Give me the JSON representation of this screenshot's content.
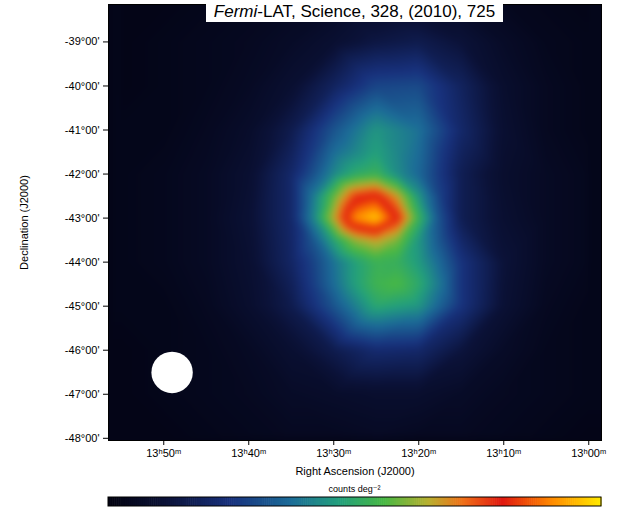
{
  "chart_data": {
    "type": "heatmap",
    "title": "Fermi-LAT, Science, 328, (2010), 725",
    "x_label": "Right Ascension (J2000)",
    "y_label": "Declination (J2000)",
    "xlim": [
      836.5,
      778.5
    ],
    "ylim": [
      -48.05,
      -38.15
    ],
    "xticks": [
      {
        "value": 830,
        "label": "13ʰ50ᵐ"
      },
      {
        "value": 820,
        "label": "13ʰ40ᵐ"
      },
      {
        "value": 810,
        "label": "13ʰ30ᵐ"
      },
      {
        "value": 800,
        "label": "13ʰ20ᵐ"
      },
      {
        "value": 790,
        "label": "13ʰ10ᵐ"
      },
      {
        "value": 780,
        "label": "13ʰ00ᵐ"
      }
    ],
    "yticks": [
      {
        "value": -39,
        "label": "-39°00'"
      },
      {
        "value": -40,
        "label": "-40°00'"
      },
      {
        "value": -41,
        "label": "-41°00'"
      },
      {
        "value": -42,
        "label": "-42°00'"
      },
      {
        "value": -43,
        "label": "-43°00'"
      },
      {
        "value": -44,
        "label": "-44°00'"
      },
      {
        "value": -45,
        "label": "-45°00'"
      },
      {
        "value": -46,
        "label": "-46°00'"
      },
      {
        "value": -47,
        "label": "-47°00'"
      },
      {
        "value": -48,
        "label": "-48°00'"
      }
    ],
    "cells": [
      {
        "x": [
          835,
          830,
          825,
          820,
          815,
          810,
          805,
          800,
          795,
          790,
          785,
          780
        ],
        "y": [
          -38,
          -39,
          -40,
          -41,
          -42,
          -43,
          -44,
          -45,
          -46,
          -47,
          -48
        ],
        "values": [
          [
            2,
            2,
            3,
            4,
            5,
            6,
            7,
            7,
            6,
            4,
            3,
            2
          ],
          [
            2,
            3,
            4,
            5,
            7,
            10,
            14,
            16,
            12,
            7,
            4,
            3
          ],
          [
            2,
            3,
            4,
            6,
            10,
            19,
            29,
            30,
            19,
            9,
            5,
            3
          ],
          [
            3,
            3,
            5,
            8,
            16,
            32,
            45,
            38,
            21,
            10,
            5,
            3
          ],
          [
            3,
            4,
            6,
            10,
            21,
            null,
            null,
            null,
            17,
            9,
            6,
            4
          ],
          [
            3,
            4,
            6,
            11,
            21,
            null,
            null,
            null,
            17,
            10,
            6,
            4
          ],
          [
            3,
            4,
            6,
            10,
            20,
            null,
            null,
            null,
            25,
            12,
            6,
            4
          ],
          [
            3,
            3,
            5,
            9,
            16,
            32,
            49,
            45,
            25,
            11,
            5,
            3
          ],
          [
            2,
            3,
            4,
            6,
            10,
            16,
            22,
            21,
            13,
            7,
            4,
            3
          ],
          [
            2,
            3,
            4,
            5,
            7,
            8,
            9,
            9,
            7,
            5,
            4,
            3
          ],
          [
            2,
            2,
            3,
            4,
            5,
            5,
            6,
            5,
            5,
            4,
            3,
            2
          ]
        ]
      },
      {
        "x": [
          797.5,
          800,
          802.5,
          805,
          807.5,
          810,
          812.5
        ],
        "y": [
          -41.5,
          -42,
          -42.5,
          -43,
          -43.5,
          -44,
          -44.5
        ],
        "values": [
          [
            27,
            37,
            42,
            47,
            42,
            37,
            27
          ],
          [
            26,
            36,
            43,
            53,
            50,
            42,
            31
          ],
          [
            28,
            45,
            67,
            81,
            77,
            58,
            39
          ],
          [
            31,
            53,
            80,
            97,
            91,
            66,
            41
          ],
          [
            32,
            45,
            60,
            67,
            62,
            48,
            32
          ],
          [
            36,
            46,
            52,
            53,
            47,
            38,
            28
          ],
          [
            39,
            50,
            56,
            54,
            47,
            37,
            27
          ]
        ]
      }
    ],
    "colorbar": {
      "label": "counts deg⁻²",
      "range": [
        0,
        100
      ]
    }
  }
}
